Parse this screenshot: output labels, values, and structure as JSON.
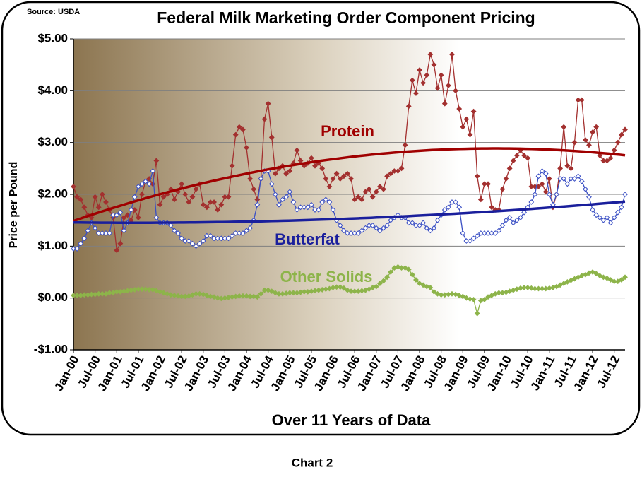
{
  "source": "Source: USDA",
  "caption": "Chart 2",
  "chart_data": {
    "type": "line",
    "title": "Federal Milk Marketing Order Component Pricing",
    "x_label": "Over 11 Years of Data",
    "y_label": "Price per Pound",
    "categories": [
      "Jan-00",
      null,
      null,
      null,
      null,
      null,
      "Jul-00",
      null,
      null,
      null,
      null,
      null,
      "Jan-01",
      null,
      null,
      null,
      null,
      null,
      "Jul-01",
      null,
      null,
      null,
      null,
      null,
      "Jan-02",
      null,
      null,
      null,
      null,
      null,
      "Jul-02",
      null,
      null,
      null,
      null,
      null,
      "Jan-03",
      null,
      null,
      null,
      null,
      null,
      "Jul-03",
      null,
      null,
      null,
      null,
      null,
      "Jan-04",
      null,
      null,
      null,
      null,
      null,
      "Jul-04",
      null,
      null,
      null,
      null,
      null,
      "Jan-05",
      null,
      null,
      null,
      null,
      null,
      "Jul-05",
      null,
      null,
      null,
      null,
      null,
      "Jan-06",
      null,
      null,
      null,
      null,
      null,
      "Jul-06",
      null,
      null,
      null,
      null,
      null,
      "Jan-07",
      null,
      null,
      null,
      null,
      null,
      "Jul-07",
      null,
      null,
      null,
      null,
      null,
      "Jan-08",
      null,
      null,
      null,
      null,
      null,
      "Jul-08",
      null,
      null,
      null,
      null,
      null,
      "Jan-09",
      null,
      null,
      null,
      null,
      null,
      "Jul-09",
      null,
      null,
      null,
      null,
      null,
      "Jan-10",
      null,
      null,
      null,
      null,
      null,
      "Jul-10",
      null,
      null,
      null,
      null,
      null,
      "Jan-11",
      null,
      null,
      null,
      null,
      null,
      "Jul-11",
      null,
      null,
      null,
      null,
      null,
      "Jan-12",
      null,
      null,
      null,
      null,
      null,
      "Jul-12",
      null,
      null,
      null
    ],
    "ylim": [
      -1,
      5
    ],
    "yticks": [
      {
        "value": -1,
        "label": "-$1.00"
      },
      {
        "value": 0,
        "label": "$0.00"
      },
      {
        "value": 1,
        "label": "$1.00"
      },
      {
        "value": 2,
        "label": "$2.00"
      },
      {
        "value": 3,
        "label": "$3.00"
      },
      {
        "value": 4,
        "label": "$4.00"
      },
      {
        "value": 5,
        "label": "$5.00"
      }
    ],
    "grid": true,
    "series": [
      {
        "name": "Protein",
        "color": "#a3302f",
        "marker": "filled",
        "trendline": {
          "degree": 2,
          "color": "#a00000"
        },
        "values": [
          2.15,
          1.95,
          1.9,
          1.75,
          1.6,
          1.55,
          1.95,
          1.75,
          2.0,
          1.85,
          1.7,
          1.55,
          0.92,
          1.05,
          1.55,
          1.6,
          1.5,
          1.7,
          1.55,
          2.0,
          2.25,
          2.3,
          2.2,
          2.65,
          1.8,
          1.95,
          2.0,
          2.1,
          1.9,
          2.05,
          2.2,
          2.0,
          1.85,
          1.95,
          2.1,
          2.2,
          1.8,
          1.75,
          1.85,
          1.85,
          1.7,
          1.8,
          1.95,
          1.95,
          2.55,
          3.15,
          3.3,
          3.25,
          2.9,
          2.3,
          2.1,
          1.9,
          2.3,
          3.45,
          3.75,
          3.1,
          2.4,
          2.5,
          2.55,
          2.4,
          2.45,
          2.6,
          2.85,
          2.65,
          2.55,
          2.6,
          2.7,
          2.55,
          2.6,
          2.5,
          2.3,
          2.15,
          2.3,
          2.4,
          2.3,
          2.35,
          2.4,
          2.3,
          1.9,
          1.95,
          1.9,
          2.05,
          2.1,
          1.95,
          2.05,
          2.15,
          2.1,
          2.35,
          2.4,
          2.45,
          2.45,
          2.5,
          2.95,
          3.7,
          4.2,
          3.95,
          4.4,
          4.15,
          4.3,
          4.7,
          4.5,
          4.05,
          4.3,
          3.75,
          4.1,
          4.7,
          4.0,
          3.65,
          3.3,
          3.45,
          3.15,
          3.6,
          2.35,
          1.9,
          2.2,
          2.2,
          1.75,
          1.7,
          1.7,
          2.1,
          2.3,
          2.5,
          2.65,
          2.75,
          2.85,
          2.75,
          2.7,
          2.15,
          2.15,
          2.15,
          2.2,
          2.05,
          2.3,
          1.75,
          2.0,
          2.5,
          3.3,
          2.55,
          2.5,
          3.0,
          3.82,
          3.82,
          3.05,
          2.95,
          3.2,
          3.3,
          2.75,
          2.65,
          2.65,
          2.7,
          2.85,
          3.0,
          3.15,
          3.25
        ]
      },
      {
        "name": "Butterfat",
        "color": "#3a4fc4",
        "marker": "open",
        "trendline": {
          "degree": 2,
          "color": "#1a1f9c"
        },
        "values": [
          0.95,
          0.95,
          1.05,
          1.15,
          1.3,
          1.45,
          1.35,
          1.25,
          1.25,
          1.25,
          1.25,
          1.6,
          1.6,
          1.65,
          1.3,
          1.45,
          1.7,
          1.95,
          2.15,
          2.2,
          2.25,
          2.2,
          2.45,
          1.55,
          1.45,
          1.45,
          1.45,
          1.4,
          1.3,
          1.25,
          1.15,
          1.1,
          1.1,
          1.05,
          1.0,
          1.05,
          1.1,
          1.2,
          1.2,
          1.15,
          1.15,
          1.15,
          1.15,
          1.15,
          1.2,
          1.25,
          1.25,
          1.25,
          1.3,
          1.35,
          1.5,
          1.8,
          2.3,
          2.45,
          2.45,
          2.2,
          2.0,
          1.8,
          1.9,
          1.95,
          2.05,
          1.85,
          1.7,
          1.75,
          1.75,
          1.75,
          1.8,
          1.7,
          1.7,
          1.85,
          1.9,
          1.85,
          1.7,
          1.5,
          1.4,
          1.3,
          1.25,
          1.25,
          1.25,
          1.25,
          1.3,
          1.35,
          1.4,
          1.4,
          1.35,
          1.3,
          1.35,
          1.4,
          1.5,
          1.55,
          1.6,
          1.55,
          1.55,
          1.45,
          1.45,
          1.4,
          1.4,
          1.45,
          1.35,
          1.3,
          1.35,
          1.5,
          1.6,
          1.7,
          1.75,
          1.85,
          1.85,
          1.75,
          1.25,
          1.1,
          1.1,
          1.15,
          1.2,
          1.25,
          1.25,
          1.25,
          1.25,
          1.25,
          1.3,
          1.4,
          1.5,
          1.55,
          1.45,
          1.5,
          1.55,
          1.65,
          1.75,
          1.85,
          2.0,
          2.35,
          2.45,
          2.4,
          2.0,
          1.8,
          2.0,
          2.3,
          2.3,
          2.2,
          2.3,
          2.3,
          2.35,
          2.25,
          2.1,
          1.95,
          1.7,
          1.6,
          1.55,
          1.5,
          1.55,
          1.45,
          1.55,
          1.65,
          1.75,
          2.0
        ]
      },
      {
        "name": "Other Solids",
        "color": "#8db44a",
        "marker": "filled",
        "values": [
          0.05,
          0.05,
          0.05,
          0.06,
          0.06,
          0.07,
          0.07,
          0.08,
          0.08,
          0.08,
          0.1,
          0.1,
          0.12,
          0.12,
          0.13,
          0.14,
          0.15,
          0.16,
          0.17,
          0.17,
          0.17,
          0.16,
          0.16,
          0.14,
          0.12,
          0.1,
          0.08,
          0.06,
          0.05,
          0.04,
          0.03,
          0.03,
          0.04,
          0.06,
          0.08,
          0.08,
          0.07,
          0.05,
          0.03,
          0.02,
          0.0,
          -0.01,
          0.0,
          0.01,
          0.02,
          0.03,
          0.04,
          0.04,
          0.04,
          0.03,
          0.03,
          0.02,
          0.08,
          0.15,
          0.15,
          0.13,
          0.1,
          0.08,
          0.08,
          0.09,
          0.1,
          0.1,
          0.1,
          0.11,
          0.12,
          0.12,
          0.13,
          0.14,
          0.15,
          0.16,
          0.17,
          0.18,
          0.2,
          0.21,
          0.21,
          0.19,
          0.15,
          0.13,
          0.13,
          0.13,
          0.14,
          0.15,
          0.17,
          0.2,
          0.22,
          0.28,
          0.33,
          0.4,
          0.5,
          0.58,
          0.6,
          0.58,
          0.58,
          0.55,
          0.45,
          0.35,
          0.28,
          0.25,
          0.22,
          0.2,
          0.12,
          0.08,
          0.06,
          0.06,
          0.07,
          0.08,
          0.07,
          0.05,
          0.03,
          0.0,
          -0.02,
          -0.03,
          -0.3,
          -0.05,
          -0.03,
          0.02,
          0.05,
          0.08,
          0.1,
          0.1,
          0.11,
          0.13,
          0.15,
          0.17,
          0.19,
          0.2,
          0.2,
          0.19,
          0.18,
          0.18,
          0.18,
          0.18,
          0.19,
          0.2,
          0.22,
          0.25,
          0.28,
          0.31,
          0.34,
          0.37,
          0.4,
          0.43,
          0.45,
          0.48,
          0.5,
          0.47,
          0.43,
          0.4,
          0.38,
          0.35,
          0.32,
          0.32,
          0.35,
          0.4
        ]
      }
    ]
  }
}
